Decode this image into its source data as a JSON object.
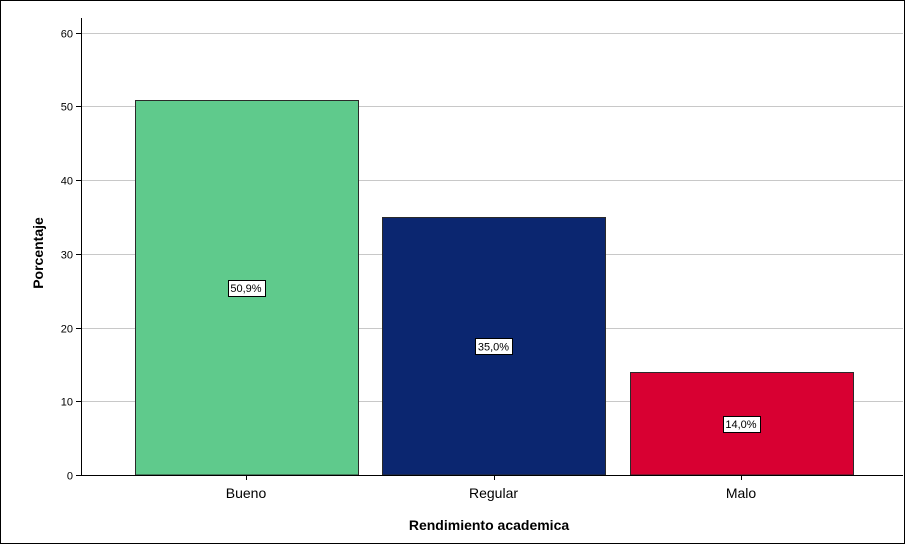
{
  "chart_data": {
    "type": "bar",
    "title": "",
    "xlabel": "Rendimiento academica",
    "ylabel": "Porcentaje",
    "categories": [
      "Bueno",
      "Regular",
      "Malo"
    ],
    "values": [
      50.9,
      35.0,
      14.0
    ],
    "data_labels": [
      "50,9%",
      "35,0%",
      "14,0%"
    ],
    "colors": [
      "#5fca8c",
      "#0b2670",
      "#d80032"
    ],
    "ylim": [
      0,
      62
    ],
    "yticks": [
      0,
      10,
      20,
      30,
      40,
      50,
      60
    ],
    "grid": true,
    "legend": "none"
  }
}
